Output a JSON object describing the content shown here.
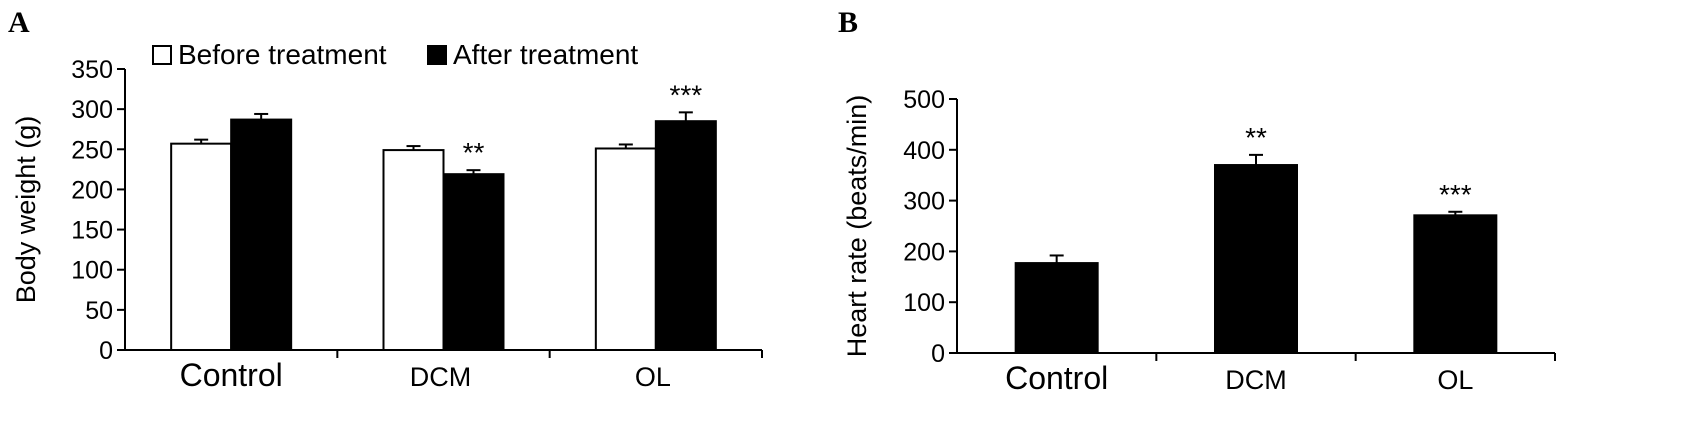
{
  "chart_data": [
    {
      "panel": "A",
      "type": "bar",
      "ylabel": "Body weight (g)",
      "ylim": [
        0,
        350
      ],
      "yticks": [
        0,
        50,
        100,
        150,
        200,
        250,
        300,
        350
      ],
      "categories": [
        "Control",
        "DCM",
        "OL"
      ],
      "legend": {
        "placement": "top"
      },
      "series": [
        {
          "name": "Before treatment",
          "color": "#ffffff",
          "values": [
            257,
            249,
            251
          ],
          "errors": [
            5,
            5,
            5
          ]
        },
        {
          "name": "After treatment",
          "color": "#000000",
          "values": [
            287,
            219,
            285
          ],
          "errors": [
            7,
            5,
            11
          ]
        }
      ],
      "annotations": [
        {
          "series": 1,
          "category": 1,
          "text": "**"
        },
        {
          "series": 1,
          "category": 2,
          "text": "***"
        }
      ]
    },
    {
      "panel": "B",
      "type": "bar",
      "ylabel": "Heart rate (beats/min)",
      "ylim": [
        0,
        500
      ],
      "yticks": [
        0,
        100,
        200,
        300,
        400,
        500
      ],
      "categories": [
        "Control",
        "DCM",
        "OL"
      ],
      "series": [
        {
          "color": "#000000",
          "values": [
            177,
            370,
            271
          ],
          "errors": [
            15,
            20,
            7
          ]
        }
      ],
      "annotations": [
        {
          "series": 0,
          "category": 1,
          "text": "**"
        },
        {
          "series": 0,
          "category": 2,
          "text": "***"
        }
      ]
    }
  ]
}
